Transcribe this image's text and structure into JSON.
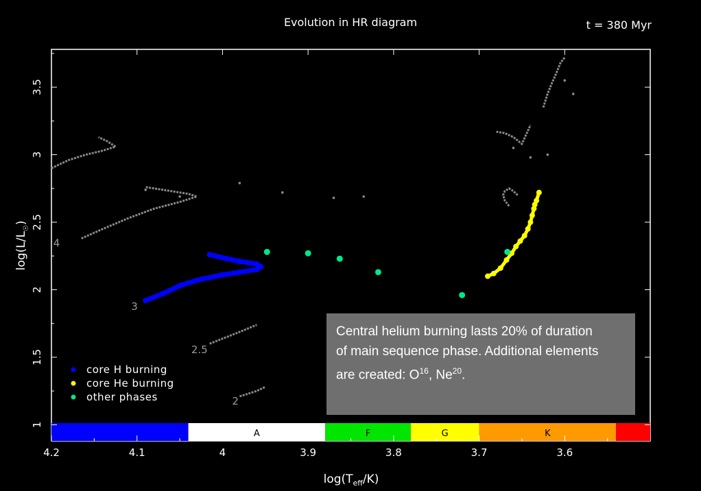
{
  "header": {
    "title": "Evolution in HR diagram",
    "time": "t = 380 Myr"
  },
  "chart_data": {
    "type": "scatter",
    "title": "Evolution in HR diagram",
    "xlabel_main": "log(T",
    "xlabel_sub": "eff",
    "xlabel_end": "/K)",
    "ylabel": "log(L/L",
    "ylabel_sub": "☉",
    "ylabel_end": ")",
    "xlim": [
      4.2,
      3.5
    ],
    "ylim": [
      0.88,
      3.78
    ],
    "x_ticks": [
      {
        "v": 4.2,
        "label": "4.2"
      },
      {
        "v": 4.1,
        "label": "4.1"
      },
      {
        "v": 4.0,
        "label": "4"
      },
      {
        "v": 3.9,
        "label": "3.9"
      },
      {
        "v": 3.8,
        "label": "3.8"
      },
      {
        "v": 3.7,
        "label": "3.7"
      },
      {
        "v": 3.6,
        "label": "3.6"
      }
    ],
    "y_ticks": [
      {
        "v": 1.0,
        "label": "1"
      },
      {
        "v": 1.5,
        "label": "1.5"
      },
      {
        "v": 2.0,
        "label": "2"
      },
      {
        "v": 2.5,
        "label": "2.5"
      },
      {
        "v": 3.0,
        "label": "3"
      },
      {
        "v": 3.5,
        "label": "3.5"
      }
    ],
    "spectral_bands": [
      {
        "label": "",
        "from": 4.2,
        "to": 4.04,
        "color": "#0000ff"
      },
      {
        "label": "A",
        "from": 4.04,
        "to": 3.88,
        "color": "#ffffff"
      },
      {
        "label": "F",
        "from": 3.88,
        "to": 3.78,
        "color": "#00e600"
      },
      {
        "label": "G",
        "from": 3.78,
        "to": 3.7,
        "color": "#ffff00"
      },
      {
        "label": "K",
        "from": 3.7,
        "to": 3.54,
        "color": "#ff9900"
      },
      {
        "label": "",
        "from": 3.54,
        "to": 3.5,
        "color": "#ff0000"
      }
    ],
    "mass_labels": [
      {
        "label": "4",
        "x": 4.194,
        "y": 2.32
      },
      {
        "label": "3",
        "x": 4.103,
        "y": 1.85
      },
      {
        "label": "2.5",
        "x": 4.027,
        "y": 1.53
      },
      {
        "label": "2",
        "x": 3.985,
        "y": 1.15
      }
    ],
    "series": [
      {
        "name": "core H burning",
        "color": "#0000ff",
        "x": [
          4.09,
          4.07,
          4.05,
          4.03,
          4.0,
          3.98,
          3.96,
          3.955,
          3.96,
          3.97,
          3.98,
          3.995,
          4.015
        ],
        "y": [
          1.92,
          1.97,
          2.03,
          2.07,
          2.11,
          2.13,
          2.15,
          2.17,
          2.19,
          2.2,
          2.21,
          2.23,
          2.26
        ]
      },
      {
        "name": "core He burning",
        "color": "#ffff00",
        "x": [
          3.69,
          3.683,
          3.675,
          3.668,
          3.662,
          3.657,
          3.652,
          3.647,
          3.643,
          3.64,
          3.638,
          3.636,
          3.635,
          3.633,
          3.63
        ],
        "y": [
          2.1,
          2.12,
          2.16,
          2.22,
          2.27,
          2.32,
          2.36,
          2.4,
          2.45,
          2.5,
          2.55,
          2.6,
          2.63,
          2.66,
          2.72
        ]
      },
      {
        "name": "other phases",
        "color": "#00e68c",
        "x": [
          3.948,
          3.9,
          3.863,
          3.818,
          3.72,
          3.667
        ],
        "y": [
          2.28,
          2.27,
          2.23,
          2.13,
          1.96,
          2.28
        ]
      }
    ],
    "other_tracks": [
      {
        "x": [
          4.2,
          4.18,
          4.16,
          4.14,
          4.125,
          4.135,
          4.145
        ],
        "y": [
          2.9,
          2.96,
          3.0,
          3.03,
          3.06,
          3.1,
          3.13
        ]
      },
      {
        "x": [
          4.165,
          4.14,
          4.11,
          4.08,
          4.05,
          4.03,
          4.04,
          4.06,
          4.09
        ],
        "y": [
          2.38,
          2.45,
          2.53,
          2.6,
          2.65,
          2.69,
          2.71,
          2.73,
          2.76
        ]
      },
      {
        "x": [
          4.015,
          3.995,
          3.975,
          3.96
        ],
        "y": [
          1.6,
          1.65,
          1.7,
          1.74
        ]
      },
      {
        "x": [
          3.98,
          3.97,
          3.96,
          3.95
        ],
        "y": [
          1.21,
          1.23,
          1.25,
          1.28
        ]
      },
      {
        "x": [
          3.665,
          3.67,
          3.672,
          3.67,
          3.665,
          3.66,
          3.655
        ],
        "y": [
          2.62,
          2.66,
          2.7,
          2.73,
          2.75,
          2.73,
          2.7
        ]
      },
      {
        "x": [
          3.68,
          3.67,
          3.66,
          3.65,
          3.645,
          3.64
        ],
        "y": [
          3.17,
          3.16,
          3.13,
          3.08,
          3.15,
          3.22
        ]
      },
      {
        "x": [
          3.625,
          3.62,
          3.615,
          3.61,
          3.605,
          3.6
        ],
        "y": [
          3.35,
          3.45,
          3.53,
          3.6,
          3.68,
          3.72
        ]
      }
    ],
    "stray_points": {
      "x": [
        4.09,
        4.05,
        3.98,
        3.93,
        3.87,
        3.835,
        3.66,
        3.64,
        3.6,
        3.59,
        3.62
      ],
      "y": [
        2.74,
        2.69,
        2.79,
        2.72,
        2.68,
        2.69,
        3.05,
        2.98,
        3.55,
        3.45,
        3.0
      ]
    },
    "legend": {
      "placement": "lower-left",
      "entries": [
        {
          "label": "core H burning",
          "color": "#0000ff"
        },
        {
          "label": "core He burning",
          "color": "#ffff00"
        },
        {
          "label": "other phases",
          "color": "#00e68c"
        }
      ]
    }
  },
  "info_box": {
    "line1": "Central helium burning lasts 20% of duration",
    "line2": "of main sequence phase. Additional elements",
    "line3_a": "are created: O",
    "o_sup": "16",
    "sep": ", Ne",
    "ne_sup": "20",
    "end": "."
  }
}
